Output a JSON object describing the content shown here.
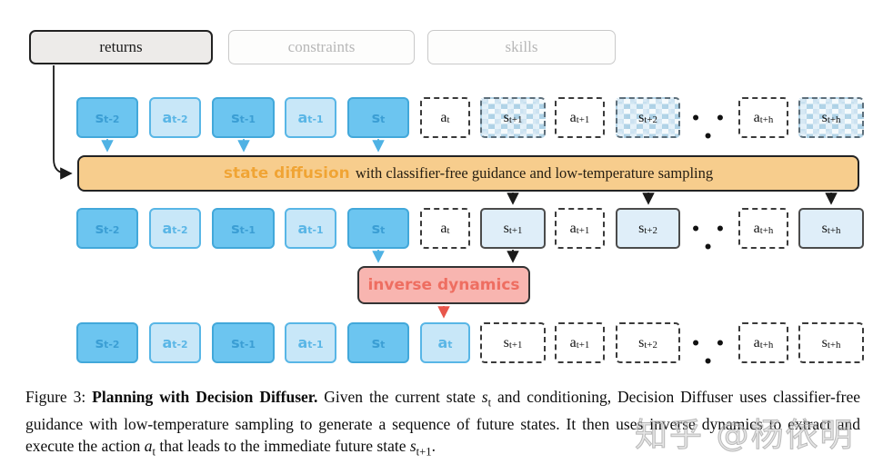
{
  "conditioning": {
    "returns": "returns",
    "constraints": "constraints",
    "skills": "skills"
  },
  "diffusion_bar": {
    "highlight": "state diffusion",
    "rest": " with classifier-free guidance and low-temperature sampling"
  },
  "inverse_dynamics_label": "inverse dynamics",
  "ellipsis": "• • •",
  "rows": [
    {
      "name": "noisy-input-row",
      "tokens": [
        {
          "base": "s",
          "sub": "t-2",
          "variant": "s-solid"
        },
        {
          "base": "a",
          "sub": "t-2",
          "variant": "a-solid"
        },
        {
          "base": "s",
          "sub": "t-1",
          "variant": "s-solid"
        },
        {
          "base": "a",
          "sub": "t-1",
          "variant": "a-solid"
        },
        {
          "base": "s",
          "sub": "t",
          "variant": "s-solid"
        },
        {
          "base": "a",
          "sub": "t",
          "variant": "a-dashed"
        },
        {
          "base": "s",
          "sub": "t+1",
          "variant": "s-noisy"
        },
        {
          "base": "a",
          "sub": "t+1",
          "variant": "a-dashed"
        },
        {
          "base": "s",
          "sub": "t+2",
          "variant": "s-noisy"
        },
        {
          "base": "a",
          "sub": "t+h",
          "variant": "a-dashed"
        },
        {
          "base": "s",
          "sub": "t+h",
          "variant": "s-noisy"
        }
      ]
    },
    {
      "name": "denoised-states-row",
      "tokens": [
        {
          "base": "s",
          "sub": "t-2",
          "variant": "s-solid"
        },
        {
          "base": "a",
          "sub": "t-2",
          "variant": "a-solid"
        },
        {
          "base": "s",
          "sub": "t-1",
          "variant": "s-solid"
        },
        {
          "base": "a",
          "sub": "t-1",
          "variant": "a-solid"
        },
        {
          "base": "s",
          "sub": "t",
          "variant": "s-solid"
        },
        {
          "base": "a",
          "sub": "t",
          "variant": "a-dashed"
        },
        {
          "base": "s",
          "sub": "t+1",
          "variant": "s-gen"
        },
        {
          "base": "a",
          "sub": "t+1",
          "variant": "a-dashed"
        },
        {
          "base": "s",
          "sub": "t+2",
          "variant": "s-gen"
        },
        {
          "base": "a",
          "sub": "t+h",
          "variant": "a-dashed"
        },
        {
          "base": "s",
          "sub": "t+h",
          "variant": "s-gen"
        }
      ]
    },
    {
      "name": "final-plan-row",
      "tokens": [
        {
          "base": "s",
          "sub": "t-2",
          "variant": "s-solid"
        },
        {
          "base": "a",
          "sub": "t-2",
          "variant": "a-solid"
        },
        {
          "base": "s",
          "sub": "t-1",
          "variant": "s-solid"
        },
        {
          "base": "a",
          "sub": "t-1",
          "variant": "a-solid"
        },
        {
          "base": "s",
          "sub": "t",
          "variant": "s-solid"
        },
        {
          "base": "a",
          "sub": "t",
          "variant": "a-solid"
        },
        {
          "base": "s",
          "sub": "t+1",
          "variant": "s-dashed"
        },
        {
          "base": "a",
          "sub": "t+1",
          "variant": "a-dashed"
        },
        {
          "base": "s",
          "sub": "t+2",
          "variant": "s-dashed"
        },
        {
          "base": "a",
          "sub": "t+h",
          "variant": "a-dashed"
        },
        {
          "base": "s",
          "sub": "t+h",
          "variant": "s-dashed"
        }
      ]
    }
  ],
  "caption": {
    "segments": [
      {
        "type": "text",
        "text": "Figure 3: "
      },
      {
        "type": "bold",
        "text": "Planning with Decision Diffuser."
      },
      {
        "type": "text",
        "text": " Given the current state "
      },
      {
        "type": "math",
        "base": "s",
        "sub": "t"
      },
      {
        "type": "text",
        "text": " and conditioning, Decision Diffuser uses classifier-free guidance with low-temperature sampling to generate a sequence of future states. It then uses inverse dynamics to extract and execute the action "
      },
      {
        "type": "math",
        "base": "a",
        "sub": "t"
      },
      {
        "type": "text",
        "text": " that leads to the immediate future state "
      },
      {
        "type": "math",
        "base": "s",
        "sub": "t+1"
      },
      {
        "type": "text",
        "text": "."
      }
    ]
  },
  "watermark": "知乎 @杨依明",
  "colors": {
    "diffusion_fill": "#f7cd8d",
    "diffusion_text_highlight": "#f0a434",
    "inverse_fill": "#f8b5b0",
    "inverse_text": "#ee6e61",
    "state_blue_fill": "#6cc5f0",
    "action_blue_fill": "#c8e7f8",
    "generated_state_fill": "#dfeef9",
    "arrow_blue": "#4fb2e4",
    "arrow_black": "#1a1a1a",
    "arrow_red": "#e8564b"
  }
}
